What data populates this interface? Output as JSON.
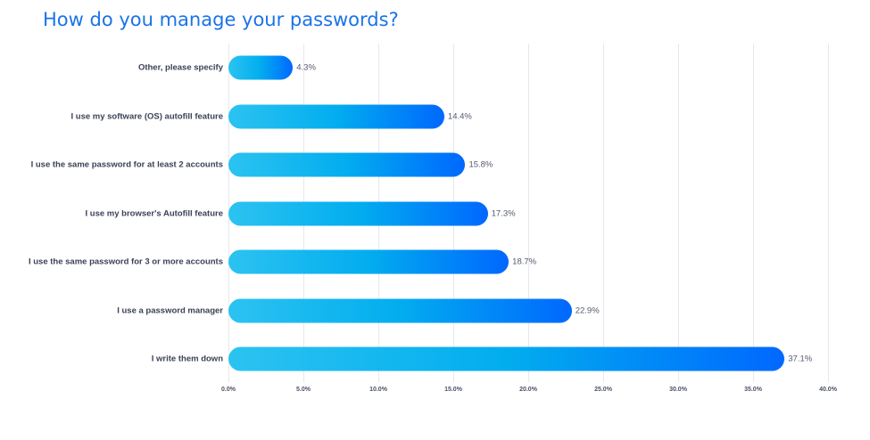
{
  "title": "How do you manage your passwords?",
  "chart_data": {
    "type": "bar",
    "orientation": "horizontal",
    "title": "How do you manage your passwords?",
    "xlabel": "",
    "ylabel": "",
    "xlim": [
      0,
      40
    ],
    "grid": true,
    "legend": null,
    "categories": [
      "Other, please specify",
      "I use my software (OS) autofill feature",
      "I use the same password for at least 2 accounts",
      "I use my browser's Autofill feature",
      "I use the same password for 3 or more accounts",
      "I use a password manager",
      "I write them down"
    ],
    "values": [
      4.3,
      14.4,
      15.8,
      17.3,
      18.7,
      22.9,
      37.1
    ],
    "value_labels": [
      "4.3%",
      "14.4%",
      "15.8%",
      "17.3%",
      "18.7%",
      "22.9%",
      "37.1%"
    ],
    "x_ticks": [
      0,
      5,
      10,
      15,
      20,
      25,
      30,
      35,
      40
    ],
    "x_tick_labels": [
      "0.0%",
      "5.0%",
      "10.0%",
      "15.0%",
      "20.0%",
      "25.0%",
      "30.0%",
      "35.0%",
      "40.0%"
    ],
    "bar_gradient": [
      "#2cc3f0",
      "#02adef",
      "#0068fe"
    ],
    "title_color": "#1a73e8"
  }
}
